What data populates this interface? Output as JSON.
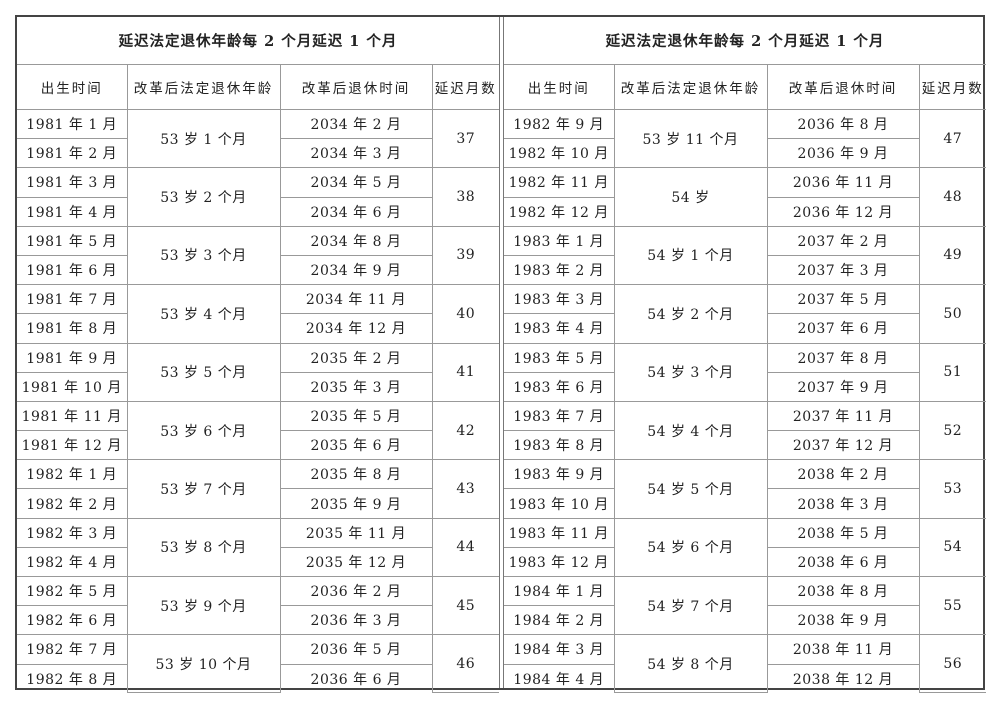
{
  "tables": [
    {
      "title": "延迟法定退休年龄每 2 个月延迟 1 个月",
      "headers": [
        "出生时间",
        "改革后法定退休年龄",
        "改革后退休时间",
        "延迟月数"
      ],
      "groups": [
        {
          "birth": [
            "1981 年 1 月",
            "1981 年 2 月"
          ],
          "age": "53 岁 1 个月",
          "retire": [
            "2034 年 2 月",
            "2034 年 3 月"
          ],
          "delay": "37"
        },
        {
          "birth": [
            "1981 年 3 月",
            "1981 年 4 月"
          ],
          "age": "53 岁 2 个月",
          "retire": [
            "2034 年 5 月",
            "2034 年 6 月"
          ],
          "delay": "38"
        },
        {
          "birth": [
            "1981 年 5 月",
            "1981 年 6 月"
          ],
          "age": "53 岁 3 个月",
          "retire": [
            "2034 年 8 月",
            "2034 年 9 月"
          ],
          "delay": "39"
        },
        {
          "birth": [
            "1981 年 7 月",
            "1981 年 8 月"
          ],
          "age": "53 岁 4 个月",
          "retire": [
            "2034 年 11 月",
            "2034 年 12 月"
          ],
          "delay": "40"
        },
        {
          "birth": [
            "1981 年 9 月",
            "1981 年 10 月"
          ],
          "age": "53 岁 5 个月",
          "retire": [
            "2035 年 2 月",
            "2035 年 3 月"
          ],
          "delay": "41"
        },
        {
          "birth": [
            "1981 年 11 月",
            "1981 年 12 月"
          ],
          "age": "53 岁 6 个月",
          "retire": [
            "2035 年 5 月",
            "2035 年 6 月"
          ],
          "delay": "42"
        },
        {
          "birth": [
            "1982 年 1 月",
            "1982 年 2 月"
          ],
          "age": "53 岁 7 个月",
          "retire": [
            "2035 年 8 月",
            "2035 年 9 月"
          ],
          "delay": "43"
        },
        {
          "birth": [
            "1982 年 3 月",
            "1982 年 4 月"
          ],
          "age": "53 岁 8 个月",
          "retire": [
            "2035 年 11 月",
            "2035 年 12 月"
          ],
          "delay": "44"
        },
        {
          "birth": [
            "1982 年 5 月",
            "1982 年 6 月"
          ],
          "age": "53 岁 9 个月",
          "retire": [
            "2036 年 2 月",
            "2036 年 3 月"
          ],
          "delay": "45"
        },
        {
          "birth": [
            "1982 年 7 月",
            "1982 年 8 月"
          ],
          "age": "53 岁 10 个月",
          "retire": [
            "2036 年 5 月",
            "2036 年 6 月"
          ],
          "delay": "46"
        }
      ]
    },
    {
      "title": "延迟法定退休年龄每 2 个月延迟 1 个月",
      "headers": [
        "出生时间",
        "改革后法定退休年龄",
        "改革后退休时间",
        "延迟月数"
      ],
      "groups": [
        {
          "birth": [
            "1982 年 9 月",
            "1982 年 10 月"
          ],
          "age": "53 岁 11 个月",
          "retire": [
            "2036 年 8 月",
            "2036 年 9 月"
          ],
          "delay": "47"
        },
        {
          "birth": [
            "1982 年 11 月",
            "1982 年 12 月"
          ],
          "age": "54 岁",
          "retire": [
            "2036 年 11 月",
            "2036 年 12 月"
          ],
          "delay": "48"
        },
        {
          "birth": [
            "1983 年 1 月",
            "1983 年 2 月"
          ],
          "age": "54 岁 1 个月",
          "retire": [
            "2037 年 2 月",
            "2037 年 3 月"
          ],
          "delay": "49"
        },
        {
          "birth": [
            "1983 年 3 月",
            "1983 年 4 月"
          ],
          "age": "54 岁 2 个月",
          "retire": [
            "2037 年 5 月",
            "2037 年 6 月"
          ],
          "delay": "50"
        },
        {
          "birth": [
            "1983 年 5 月",
            "1983 年 6 月"
          ],
          "age": "54 岁 3 个月",
          "retire": [
            "2037 年 8 月",
            "2037 年 9 月"
          ],
          "delay": "51"
        },
        {
          "birth": [
            "1983 年 7 月",
            "1983 年 8 月"
          ],
          "age": "54 岁 4 个月",
          "retire": [
            "2037 年 11 月",
            "2037 年 12 月"
          ],
          "delay": "52"
        },
        {
          "birth": [
            "1983 年 9 月",
            "1983 年 10 月"
          ],
          "age": "54 岁 5 个月",
          "retire": [
            "2038 年 2 月",
            "2038 年 3 月"
          ],
          "delay": "53"
        },
        {
          "birth": [
            "1983 年 11 月",
            "1983 年 12 月"
          ],
          "age": "54 岁 6 个月",
          "retire": [
            "2038 年 5 月",
            "2038 年 6 月"
          ],
          "delay": "54"
        },
        {
          "birth": [
            "1984 年 1 月",
            "1984 年 2 月"
          ],
          "age": "54 岁 7 个月",
          "retire": [
            "2038 年 8 月",
            "2038 年 9 月"
          ],
          "delay": "55"
        },
        {
          "birth": [
            "1984 年 3 月",
            "1984 年 4 月"
          ],
          "age": "54 岁 8 个月",
          "retire": [
            "2038 年 11 月",
            "2038 年 12 月"
          ],
          "delay": "56"
        }
      ]
    }
  ]
}
